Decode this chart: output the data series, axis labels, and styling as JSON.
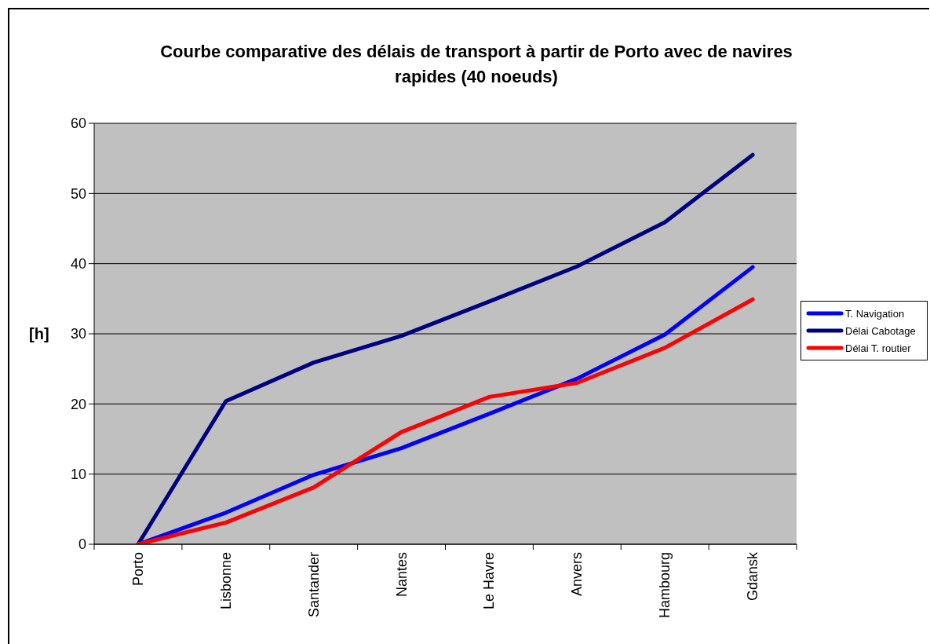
{
  "chart_data": {
    "type": "line",
    "title": "Courbe comparative des délais de transport à partir de Porto avec de navires rapides (40 noeuds)",
    "ylabel": "[h]",
    "categories": [
      "Porto",
      "Lisbonne",
      "Santander",
      "Nantes",
      "Le Havre",
      "Anvers",
      "Hambourg",
      "Gdansk"
    ],
    "series": [
      {
        "name": "T. Navigation",
        "color": "#0000ff",
        "values": [
          0,
          4.5,
          9.9,
          13.7,
          18.6,
          23.6,
          29.9,
          39.5
        ]
      },
      {
        "name": "Délai Cabotage",
        "color": "#000080",
        "values": [
          0,
          20.4,
          25.9,
          29.7,
          34.6,
          39.6,
          45.9,
          55.5
        ]
      },
      {
        "name": "Délai T. routier",
        "color": "#ff0000",
        "values": [
          0,
          3.1,
          8.1,
          16.0,
          21.0,
          23.0,
          28.0,
          34.9
        ]
      }
    ],
    "ylim": [
      0,
      60
    ],
    "yticks": [
      0,
      10,
      20,
      30,
      40,
      50,
      60
    ],
    "grid": "y",
    "legend": "right",
    "marker": "none",
    "line_style": "solid"
  }
}
